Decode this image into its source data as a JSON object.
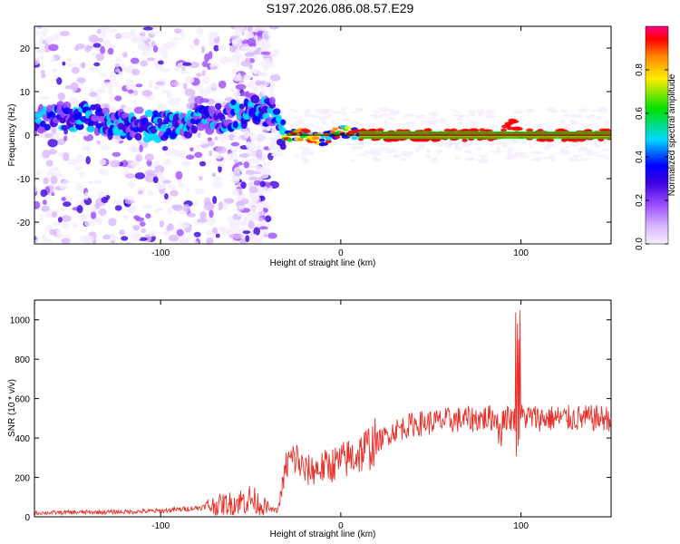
{
  "title": "S197.2026.086.08.57.E29",
  "colors": {
    "line": "#e8302a",
    "axis": "#000000",
    "background": "#ffffff",
    "colormap": [
      "#f5eeff",
      "#d9b8ff",
      "#9d4dff",
      "#3d00e0",
      "#0000ff",
      "#00d8ff",
      "#00e000",
      "#ffee00",
      "#ff8800",
      "#ff0000",
      "#ff0080"
    ]
  },
  "chart_data": [
    {
      "type": "heatmap",
      "title": "S197.2026.086.08.57.E29",
      "xlabel": "Height of straight line (km)",
      "ylabel": "Frequency (Hz)",
      "xlim": [
        -170,
        150
      ],
      "ylim": [
        -25,
        25
      ],
      "xticks": [
        -100,
        0,
        100
      ],
      "yticks": [
        -20,
        -10,
        0,
        10,
        20
      ],
      "colorbar": {
        "label": "Normalized spectral amplitude",
        "range": [
          0,
          1
        ],
        "ticks": [
          0.0,
          0.2,
          0.4,
          0.6,
          0.8
        ]
      },
      "ridge": {
        "description_points": [
          {
            "x": -170,
            "y": 4
          },
          {
            "x": -140,
            "y": 4
          },
          {
            "x": -120,
            "y": 2
          },
          {
            "x": -100,
            "y": 2
          },
          {
            "x": -80,
            "y": 3
          },
          {
            "x": -65,
            "y": 4
          },
          {
            "x": -55,
            "y": 5
          },
          {
            "x": -45,
            "y": 6
          },
          {
            "x": -38,
            "y": 5
          },
          {
            "x": -32,
            "y": 0
          },
          {
            "x": -20,
            "y": 0
          },
          {
            "x": -10,
            "y": -1
          },
          {
            "x": 0,
            "y": 1
          },
          {
            "x": 10,
            "y": 0
          },
          {
            "x": 90,
            "y": 0
          },
          {
            "x": 95,
            "y": 3
          },
          {
            "x": 100,
            "y": 0
          },
          {
            "x": 150,
            "y": 0
          }
        ]
      }
    },
    {
      "type": "line",
      "xlabel": "Height of straight line (km)",
      "ylabel": "SNR (10 * v/v)",
      "xlim": [
        -170,
        150
      ],
      "ylim": [
        0,
        1100
      ],
      "xticks": [
        -100,
        0,
        100
      ],
      "yticks": [
        0,
        200,
        400,
        600,
        800,
        1000
      ],
      "trend": {
        "x": [
          -170,
          -120,
          -100,
          -80,
          -60,
          -50,
          -40,
          -35,
          -30,
          -25,
          -20,
          -10,
          0,
          10,
          20,
          30,
          40,
          60,
          80,
          90,
          95,
          98,
          100,
          110,
          130,
          150
        ],
        "y": [
          20,
          25,
          30,
          45,
          70,
          90,
          40,
          30,
          270,
          300,
          230,
          250,
          280,
          320,
          380,
          440,
          470,
          490,
          500,
          505,
          500,
          500,
          510,
          500,
          500,
          500
        ]
      }
    }
  ]
}
